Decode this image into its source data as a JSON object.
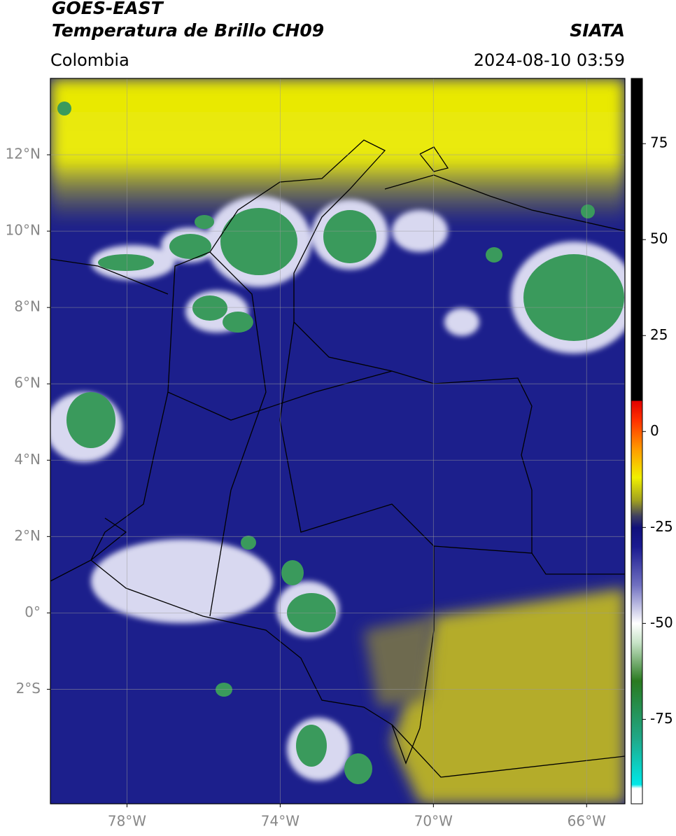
{
  "header": {
    "title": "GOES-EAST",
    "subtitle": "Temperatura de Brillo CH09",
    "brand": "SIATA",
    "region": "Colombia",
    "timestamp": "2024-08-10 03:59"
  },
  "map": {
    "xlim": [
      -80,
      -65
    ],
    "ylim": [
      -5,
      14
    ],
    "xticks": [
      {
        "value": -78,
        "label": "78°W"
      },
      {
        "value": -74,
        "label": "74°W"
      },
      {
        "value": -70,
        "label": "70°W"
      },
      {
        "value": -66,
        "label": "66°W"
      }
    ],
    "yticks": [
      {
        "value": 12,
        "label": "12°N"
      },
      {
        "value": 10,
        "label": "10°N"
      },
      {
        "value": 8,
        "label": "8°N"
      },
      {
        "value": 6,
        "label": "6°N"
      },
      {
        "value": 4,
        "label": "4°N"
      },
      {
        "value": 2,
        "label": "2°N"
      },
      {
        "value": 0,
        "label": "0°"
      },
      {
        "value": -2,
        "label": "2°S"
      }
    ],
    "grid": true
  },
  "colorbar": {
    "lim": [
      -97,
      92
    ],
    "ticks": [
      75,
      50,
      25,
      0,
      -25,
      -50,
      -75
    ],
    "colormap": [
      {
        "value": -97,
        "color": "#ffffff"
      },
      {
        "value": -93,
        "color": "#ffffff"
      },
      {
        "value": -92,
        "color": "#00e8e8"
      },
      {
        "value": -80,
        "color": "#20a888"
      },
      {
        "value": -65,
        "color": "#2a7a20"
      },
      {
        "value": -55,
        "color": "#c8e4c8"
      },
      {
        "value": -50,
        "color": "#ffffff"
      },
      {
        "value": -40,
        "color": "#7070c0"
      },
      {
        "value": -30,
        "color": "#1a1a90"
      },
      {
        "value": -25,
        "color": "#10107a"
      },
      {
        "value": -22,
        "color": "#404060"
      },
      {
        "value": -18,
        "color": "#a0a020"
      },
      {
        "value": -12,
        "color": "#f0f000"
      },
      {
        "value": -5,
        "color": "#ffa000"
      },
      {
        "value": 3,
        "color": "#ff3000"
      },
      {
        "value": 8,
        "color": "#e00000"
      },
      {
        "value": 8.01,
        "color": "#000000"
      },
      {
        "value": 92,
        "color": "#000000"
      }
    ]
  }
}
